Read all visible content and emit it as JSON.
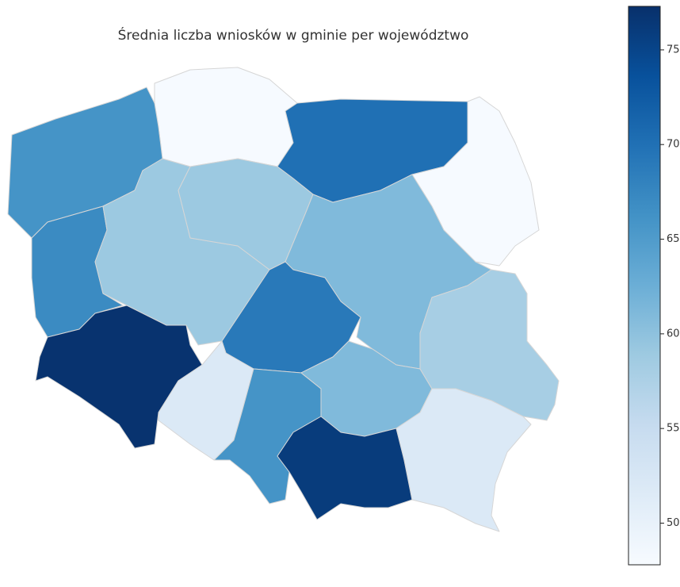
{
  "chart_data": {
    "type": "choropleth",
    "title": "Średnia liczba wniosków w gminie per województwo",
    "values": [
      48,
      70,
      48,
      66,
      67,
      59,
      59,
      61,
      69,
      77,
      52,
      66,
      61,
      76,
      58,
      52
    ],
    "colormap": "Blues",
    "clim": [
      47.8,
      77.3
    ],
    "cticks": [
      50,
      55,
      60,
      65,
      70,
      75
    ]
  }
}
